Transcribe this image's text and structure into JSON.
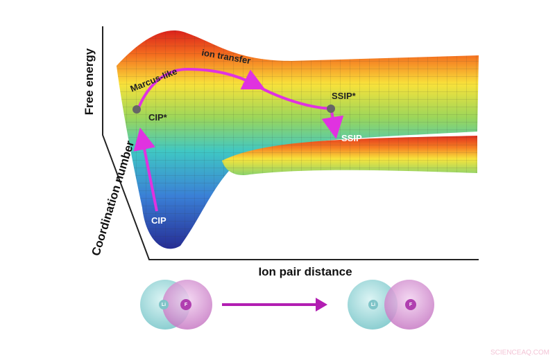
{
  "axes": {
    "energy": "Free energy",
    "coordination": "Coordination number",
    "distance": "Ion pair distance"
  },
  "path_labels": {
    "marcus": "Marcus-like",
    "transfer": "ion transfer"
  },
  "states": [
    {
      "label": "CIP*"
    },
    {
      "label": "SSIP*"
    },
    {
      "label": "SSIP"
    },
    {
      "label": "CIP"
    }
  ],
  "molecules": [
    {
      "cation": "Li",
      "anion": "F"
    },
    {
      "cation": "Li",
      "anion": "F"
    }
  ],
  "watermark": "SCIENCEAQ.COM"
}
